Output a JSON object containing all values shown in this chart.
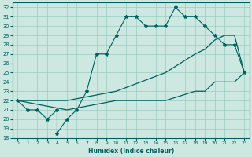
{
  "xlabel": "Humidex (Indice chaleur)",
  "bg_color": "#cce8e0",
  "grid_color": "#99ccc0",
  "line_color": "#006060",
  "xlim": [
    -0.5,
    23.5
  ],
  "ylim": [
    18,
    32.5
  ],
  "xticks": [
    0,
    1,
    2,
    3,
    4,
    5,
    6,
    7,
    8,
    9,
    10,
    11,
    12,
    13,
    14,
    15,
    16,
    17,
    18,
    19,
    20,
    21,
    22,
    23
  ],
  "yticks": [
    18,
    19,
    20,
    21,
    22,
    23,
    24,
    25,
    26,
    27,
    28,
    29,
    30,
    31,
    32
  ],
  "line1_x": [
    0,
    1,
    2,
    3,
    4,
    4,
    5,
    6,
    7,
    8,
    9,
    10,
    11,
    12,
    13,
    14,
    15,
    16,
    17,
    18,
    19,
    20,
    21,
    22,
    23
  ],
  "line1_y": [
    22,
    21,
    21,
    20,
    21,
    18.5,
    20,
    21,
    23,
    27,
    27,
    29,
    31,
    31,
    30,
    30,
    30,
    32,
    31,
    31,
    30,
    29,
    28,
    28,
    25
  ],
  "line2_x": [
    0,
    5,
    10,
    15,
    18,
    19,
    20,
    21,
    22,
    23
  ],
  "line2_y": [
    22,
    22,
    23,
    25,
    27,
    27.5,
    28.5,
    29,
    29,
    25
  ],
  "line3_x": [
    0,
    5,
    10,
    15,
    18,
    19,
    20,
    21,
    22,
    23
  ],
  "line3_y": [
    22,
    21,
    22,
    22,
    23,
    23,
    24,
    24,
    24,
    25
  ]
}
